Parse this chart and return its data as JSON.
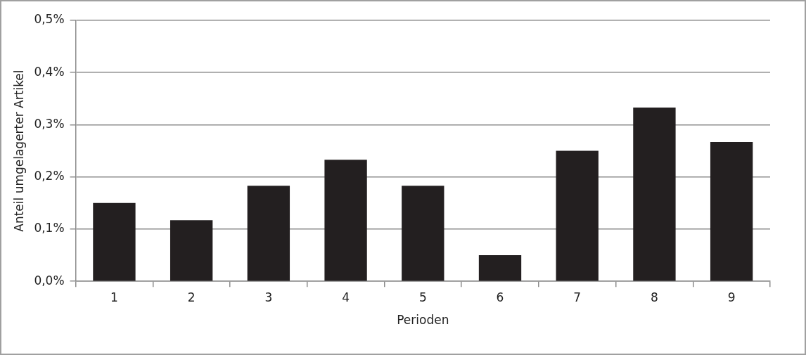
{
  "chart_data": {
    "type": "bar",
    "xlabel": "Perioden",
    "ylabel": "Anteil umgelagerter Artikel",
    "categories": [
      "1",
      "2",
      "3",
      "4",
      "5",
      "6",
      "7",
      "8",
      "9"
    ],
    "values": [
      0.15,
      0.117,
      0.183,
      0.233,
      0.183,
      0.05,
      0.25,
      0.333,
      0.267
    ],
    "color": "#231f20",
    "ylim": [
      0,
      0.5
    ],
    "yticks": [
      {
        "value": 0,
        "label": "0,0%"
      },
      {
        "value": 0.1,
        "label": "0,1%"
      },
      {
        "value": 0.2,
        "label": "0,2%"
      },
      {
        "value": 0.3,
        "label": "0,3%"
      },
      {
        "value": 0.4,
        "label": "0,4%"
      },
      {
        "value": 0.5,
        "label": "0,5%"
      }
    ],
    "grid": "y",
    "legend": false
  }
}
